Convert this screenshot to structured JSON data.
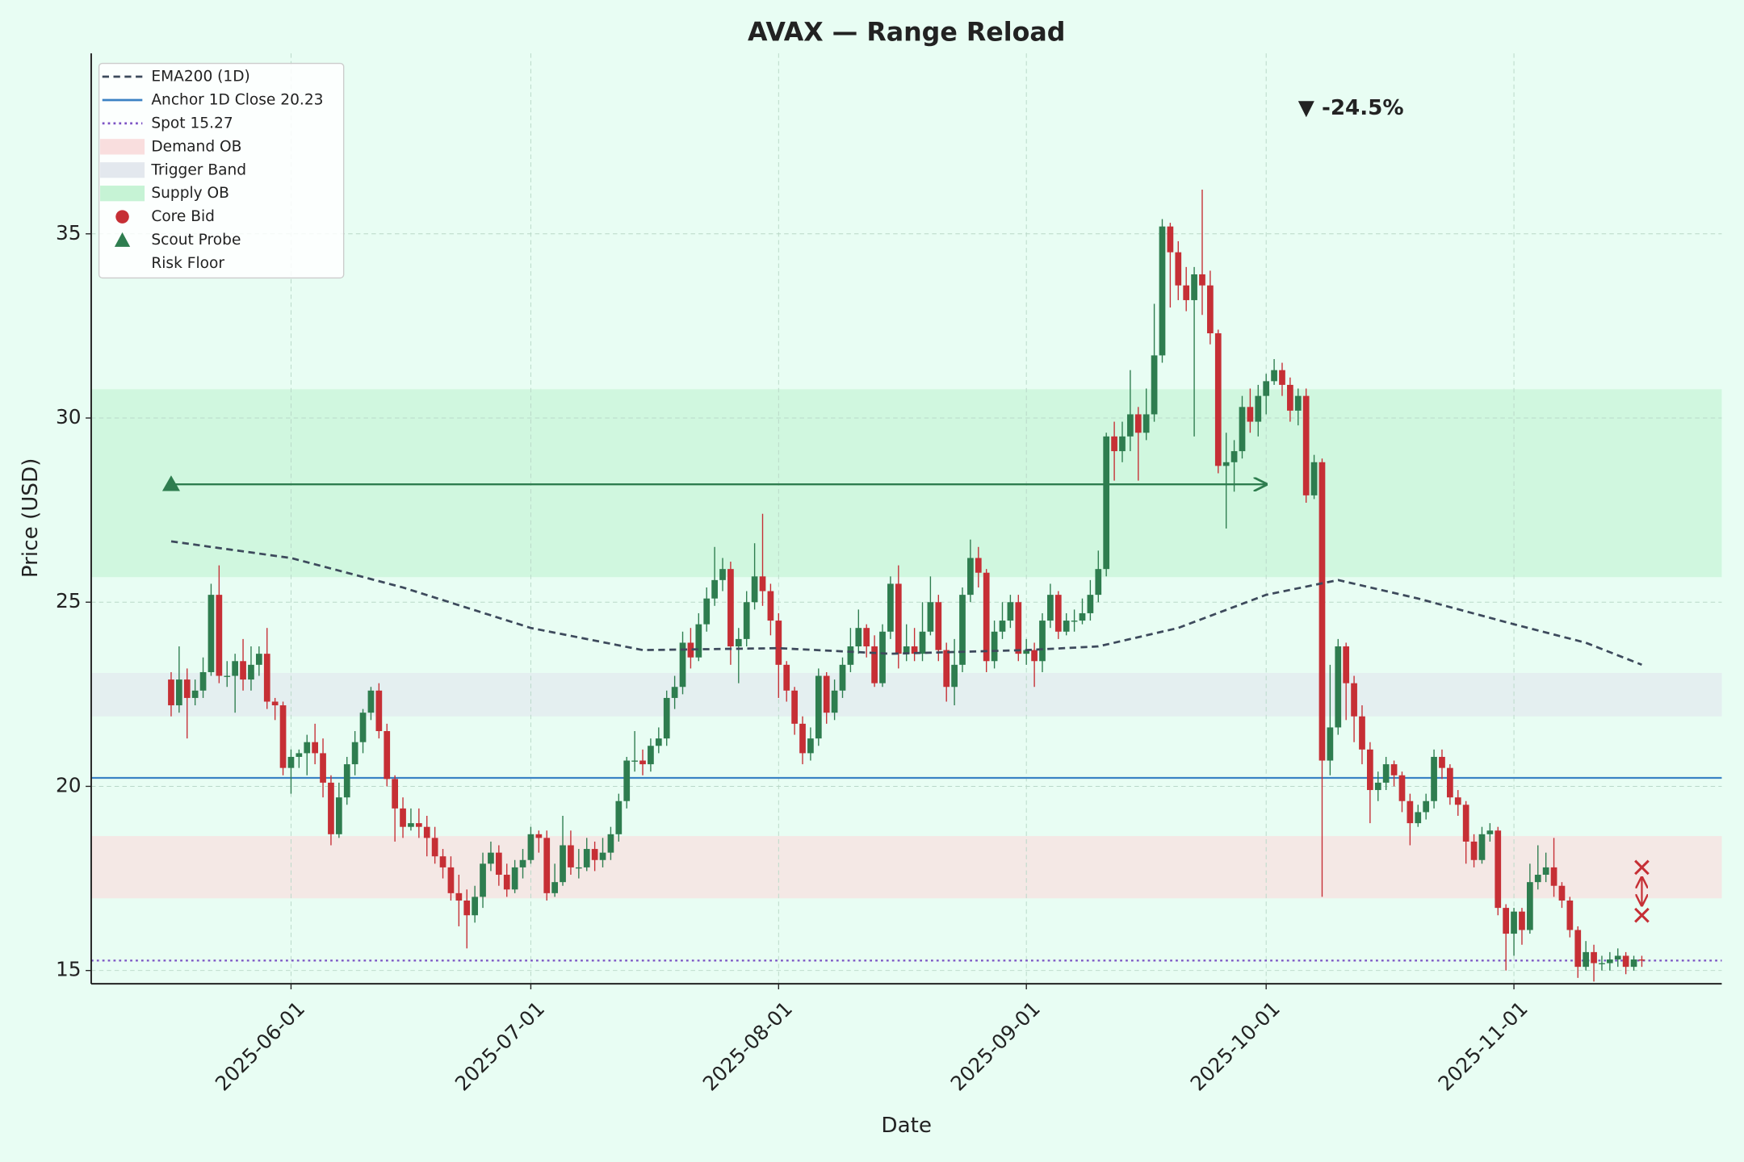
{
  "chart_data": {
    "type": "candlestick",
    "title": "AVAX — Range Reload",
    "x_label": "Date",
    "y_label": "Price (USD)",
    "xlim": [
      "2025-05-07",
      "2025-11-27"
    ],
    "ylim": [
      14.64,
      39.9
    ],
    "xticks": [
      "2025-06-01",
      "2025-07-01",
      "2025-08-01",
      "2025-09-01",
      "2025-10-01",
      "2025-11-01"
    ],
    "yticks": [
      15,
      20,
      25,
      30,
      35
    ],
    "grid": true,
    "legend_position": "upper left",
    "up_color": "#2e7d4f",
    "down_color": "#c62f35",
    "x": [
      "2025-05-17",
      "2025-05-18",
      "2025-05-19",
      "2025-05-20",
      "2025-05-21",
      "2025-05-22",
      "2025-05-23",
      "2025-05-24",
      "2025-05-25",
      "2025-05-26",
      "2025-05-27",
      "2025-05-28",
      "2025-05-29",
      "2025-05-30",
      "2025-05-31",
      "2025-06-01",
      "2025-06-02",
      "2025-06-03",
      "2025-06-04",
      "2025-06-05",
      "2025-06-06",
      "2025-06-07",
      "2025-06-08",
      "2025-06-09",
      "2025-06-10",
      "2025-06-11",
      "2025-06-12",
      "2025-06-13",
      "2025-06-14",
      "2025-06-15",
      "2025-06-16",
      "2025-06-17",
      "2025-06-18",
      "2025-06-19",
      "2025-06-20",
      "2025-06-21",
      "2025-06-22",
      "2025-06-23",
      "2025-06-24",
      "2025-06-25",
      "2025-06-26",
      "2025-06-27",
      "2025-06-28",
      "2025-06-29",
      "2025-06-30",
      "2025-07-01",
      "2025-07-02",
      "2025-07-03",
      "2025-07-04",
      "2025-07-05",
      "2025-07-06",
      "2025-07-07",
      "2025-07-08",
      "2025-07-09",
      "2025-07-10",
      "2025-07-11",
      "2025-07-12",
      "2025-07-13",
      "2025-07-14",
      "2025-07-15",
      "2025-07-16",
      "2025-07-17",
      "2025-07-18",
      "2025-07-19",
      "2025-07-20",
      "2025-07-21",
      "2025-07-22",
      "2025-07-23",
      "2025-07-24",
      "2025-07-25",
      "2025-07-26",
      "2025-07-27",
      "2025-07-28",
      "2025-07-29",
      "2025-07-30",
      "2025-07-31",
      "2025-08-01",
      "2025-08-02",
      "2025-08-03",
      "2025-08-04",
      "2025-08-05",
      "2025-08-06",
      "2025-08-07",
      "2025-08-08",
      "2025-08-09",
      "2025-08-10",
      "2025-08-11",
      "2025-08-12",
      "2025-08-13",
      "2025-08-14",
      "2025-08-15",
      "2025-08-16",
      "2025-08-17",
      "2025-08-18",
      "2025-08-19",
      "2025-08-20",
      "2025-08-21",
      "2025-08-22",
      "2025-08-23",
      "2025-08-24",
      "2025-08-25",
      "2025-08-26",
      "2025-08-27",
      "2025-08-28",
      "2025-08-29",
      "2025-08-30",
      "2025-08-31",
      "2025-09-01",
      "2025-09-02",
      "2025-09-03",
      "2025-09-04",
      "2025-09-05",
      "2025-09-06",
      "2025-09-07",
      "2025-09-08",
      "2025-09-09",
      "2025-09-10",
      "2025-09-11",
      "2025-09-12",
      "2025-09-13",
      "2025-09-14",
      "2025-09-15",
      "2025-09-16",
      "2025-09-17",
      "2025-09-18",
      "2025-09-19",
      "2025-09-20",
      "2025-09-21",
      "2025-09-22",
      "2025-09-23",
      "2025-09-24",
      "2025-09-25",
      "2025-09-26",
      "2025-09-27",
      "2025-09-28",
      "2025-09-29",
      "2025-09-30",
      "2025-10-01",
      "2025-10-02",
      "2025-10-03",
      "2025-10-04",
      "2025-10-05",
      "2025-10-06",
      "2025-10-07",
      "2025-10-08",
      "2025-10-09",
      "2025-10-10",
      "2025-10-11",
      "2025-10-12",
      "2025-10-13",
      "2025-10-14",
      "2025-10-15",
      "2025-10-16",
      "2025-10-17",
      "2025-10-18",
      "2025-10-19",
      "2025-10-20",
      "2025-10-21",
      "2025-10-22",
      "2025-10-23",
      "2025-10-24",
      "2025-10-25",
      "2025-10-26",
      "2025-10-27",
      "2025-10-28",
      "2025-10-29",
      "2025-10-30",
      "2025-10-31",
      "2025-11-01",
      "2025-11-02",
      "2025-11-03",
      "2025-11-04",
      "2025-11-05",
      "2025-11-06",
      "2025-11-07",
      "2025-11-08",
      "2025-11-09",
      "2025-11-10",
      "2025-11-11",
      "2025-11-12",
      "2025-11-13",
      "2025-11-14",
      "2025-11-15",
      "2025-11-16",
      "2025-11-17"
    ],
    "open": [
      22.9,
      22.2,
      22.9,
      22.4,
      22.6,
      23.1,
      25.2,
      23.0,
      23.0,
      23.4,
      22.9,
      23.3,
      23.6,
      22.3,
      22.2,
      20.5,
      20.8,
      20.9,
      21.2,
      20.9,
      20.1,
      18.7,
      19.7,
      20.6,
      21.2,
      22.0,
      22.6,
      21.5,
      20.2,
      19.4,
      18.9,
      19.0,
      18.9,
      18.6,
      18.1,
      17.8,
      17.1,
      16.9,
      16.5,
      17.0,
      17.9,
      18.2,
      17.6,
      17.2,
      17.8,
      18.0,
      18.7,
      18.6,
      17.1,
      17.4,
      18.4,
      17.8,
      17.8,
      18.3,
      18.0,
      18.2,
      18.7,
      19.6,
      20.7,
      20.7,
      20.6,
      21.1,
      21.3,
      22.4,
      22.7,
      23.9,
      23.5,
      24.4,
      25.1,
      25.6,
      25.9,
      23.8,
      24.0,
      25.0,
      25.7,
      25.3,
      24.5,
      23.3,
      22.6,
      21.7,
      20.9,
      21.3,
      23.0,
      22.0,
      22.6,
      23.3,
      23.8,
      24.3,
      23.8,
      22.8,
      24.2,
      25.5,
      23.6,
      23.8,
      23.6,
      24.2,
      25.0,
      23.7,
      22.7,
      23.3,
      25.2,
      26.2,
      25.8,
      23.4,
      24.2,
      24.5,
      25.0,
      23.6,
      23.7,
      23.4,
      24.5,
      25.2,
      24.2,
      24.5,
      24.5,
      24.7,
      25.2,
      25.9,
      29.5,
      29.1,
      29.5,
      30.1,
      29.6,
      30.1,
      31.7,
      35.2,
      34.5,
      33.6,
      33.2,
      33.9,
      33.6,
      32.3,
      28.7,
      28.8,
      29.1,
      30.3,
      29.9,
      30.6,
      31.0,
      31.3,
      30.9,
      30.2,
      30.6,
      27.9,
      28.8,
      20.7,
      21.6,
      23.8,
      22.8,
      21.9,
      21.0,
      19.9,
      20.1,
      20.6,
      20.3,
      19.6,
      19.0,
      19.3,
      19.6,
      20.8,
      20.5,
      19.7,
      19.5,
      18.5,
      18.0,
      18.7,
      18.8,
      16.7,
      16.0,
      16.6,
      16.1,
      17.4,
      17.6,
      17.8,
      17.3,
      16.9,
      16.1,
      15.1,
      15.5,
      15.2,
      15.2,
      15.3,
      15.4,
      15.1,
      15.3
    ],
    "high": [
      23.1,
      23.8,
      23.2,
      22.9,
      23.5,
      25.5,
      26.0,
      23.4,
      23.6,
      24.0,
      23.8,
      23.8,
      24.3,
      22.4,
      22.3,
      21.0,
      21.0,
      21.4,
      21.7,
      21.3,
      20.3,
      20.1,
      20.8,
      21.5,
      22.1,
      22.7,
      22.8,
      21.7,
      20.3,
      19.7,
      19.4,
      19.4,
      19.2,
      18.9,
      18.3,
      18.1,
      17.6,
      17.2,
      17.3,
      18.2,
      18.5,
      18.4,
      17.9,
      18.0,
      18.3,
      18.9,
      18.8,
      18.8,
      17.9,
      19.2,
      18.8,
      18.3,
      18.6,
      18.5,
      18.6,
      18.9,
      19.8,
      20.8,
      21.5,
      21.0,
      21.3,
      21.6,
      22.6,
      23.0,
      24.2,
      24.3,
      24.7,
      25.4,
      26.5,
      26.2,
      26.1,
      24.3,
      25.3,
      26.6,
      27.4,
      25.5,
      24.7,
      23.4,
      22.7,
      21.9,
      21.6,
      23.2,
      23.1,
      22.9,
      23.5,
      24.3,
      24.8,
      24.4,
      24.1,
      24.4,
      25.7,
      26.0,
      24.4,
      24.3,
      25.0,
      25.7,
      25.2,
      23.9,
      24.0,
      25.4,
      26.7,
      26.5,
      25.9,
      24.5,
      25.0,
      25.2,
      25.2,
      24.0,
      23.9,
      24.7,
      25.5,
      25.3,
      24.7,
      24.8,
      25.1,
      25.6,
      26.4,
      29.6,
      29.9,
      29.9,
      31.3,
      30.3,
      30.8,
      33.1,
      35.4,
      35.3,
      34.8,
      34.1,
      34.1,
      36.2,
      34.0,
      32.4,
      29.6,
      29.4,
      30.6,
      30.8,
      30.9,
      31.2,
      31.6,
      31.5,
      31.1,
      30.8,
      30.8,
      29.0,
      28.9,
      23.3,
      24.0,
      23.9,
      23.0,
      22.2,
      21.2,
      20.4,
      20.8,
      20.7,
      20.4,
      19.8,
      19.5,
      19.8,
      21.0,
      21.0,
      20.6,
      19.9,
      19.6,
      18.7,
      18.9,
      19.0,
      18.9,
      16.8,
      16.7,
      16.7,
      17.9,
      18.4,
      18.2,
      18.6,
      17.4,
      17.0,
      16.2,
      15.8,
      15.7,
      15.4,
      15.5,
      15.6,
      15.5,
      15.4,
      15.4
    ],
    "low": [
      21.9,
      22.0,
      21.3,
      22.2,
      22.4,
      23.0,
      22.8,
      22.7,
      22.0,
      22.6,
      22.6,
      23.0,
      22.1,
      21.8,
      20.3,
      19.8,
      20.5,
      20.3,
      20.6,
      19.7,
      18.4,
      18.6,
      19.5,
      20.3,
      20.9,
      21.8,
      21.3,
      20.0,
      18.5,
      18.6,
      18.8,
      18.6,
      18.1,
      17.9,
      17.5,
      16.9,
      16.2,
      15.6,
      16.3,
      16.7,
      17.7,
      17.3,
      17.0,
      17.1,
      17.5,
      17.9,
      18.2,
      16.9,
      17.0,
      17.3,
      17.6,
      17.5,
      17.7,
      17.7,
      17.8,
      18.0,
      18.5,
      19.4,
      20.4,
      20.3,
      20.4,
      20.9,
      21.1,
      22.1,
      22.5,
      23.2,
      23.4,
      24.2,
      24.9,
      25.3,
      23.3,
      22.8,
      23.8,
      24.8,
      24.9,
      24.1,
      22.4,
      22.3,
      21.4,
      20.6,
      20.7,
      21.1,
      21.7,
      21.8,
      22.4,
      23.1,
      23.6,
      23.5,
      22.7,
      22.7,
      24.0,
      23.2,
      23.4,
      23.4,
      23.4,
      24.1,
      23.4,
      22.3,
      22.2,
      23.1,
      25.0,
      25.4,
      23.1,
      23.2,
      24.0,
      24.3,
      23.4,
      23.3,
      22.7,
      23.1,
      24.3,
      24.0,
      24.1,
      24.2,
      24.4,
      24.5,
      25.0,
      25.7,
      28.3,
      28.8,
      29.1,
      28.3,
      29.4,
      29.9,
      31.5,
      33.0,
      33.2,
      32.9,
      29.5,
      32.8,
      32.0,
      28.5,
      27.0,
      28.0,
      28.9,
      29.6,
      29.5,
      30.1,
      30.9,
      30.6,
      29.9,
      29.8,
      27.7,
      27.8,
      17.0,
      20.3,
      21.4,
      21.8,
      21.2,
      20.6,
      19.0,
      19.6,
      19.9,
      20.0,
      19.3,
      18.4,
      18.9,
      19.1,
      19.4,
      20.2,
      19.5,
      19.2,
      17.9,
      17.8,
      17.9,
      18.5,
      16.5,
      15.0,
      15.4,
      15.7,
      16.0,
      17.2,
      17.4,
      17.0,
      16.7,
      15.9,
      14.8,
      15.0,
      14.7,
      15.0,
      15.0,
      15.1,
      14.9,
      15.0,
      15.1
    ],
    "close": [
      22.2,
      22.9,
      22.4,
      22.6,
      23.1,
      25.2,
      23.0,
      23.0,
      23.4,
      22.9,
      23.3,
      23.6,
      22.3,
      22.2,
      20.5,
      20.8,
      20.9,
      21.2,
      20.9,
      20.1,
      18.7,
      19.7,
      20.6,
      21.2,
      22.0,
      22.6,
      21.5,
      20.2,
      19.4,
      18.9,
      19.0,
      18.9,
      18.6,
      18.1,
      17.8,
      17.1,
      16.9,
      16.5,
      17.0,
      17.9,
      18.2,
      17.6,
      17.2,
      17.8,
      18.0,
      18.7,
      18.6,
      17.1,
      17.4,
      18.4,
      17.8,
      17.8,
      18.3,
      18.0,
      18.2,
      18.7,
      19.6,
      20.7,
      20.7,
      20.6,
      21.1,
      21.3,
      22.4,
      22.7,
      23.9,
      23.5,
      24.4,
      25.1,
      25.6,
      25.9,
      23.8,
      24.0,
      25.0,
      25.7,
      25.3,
      24.5,
      23.3,
      22.6,
      21.7,
      20.9,
      21.3,
      23.0,
      22.0,
      22.6,
      23.3,
      23.8,
      24.3,
      23.8,
      22.8,
      24.2,
      25.5,
      23.6,
      23.8,
      23.6,
      24.2,
      25.0,
      23.7,
      22.7,
      23.3,
      25.2,
      26.2,
      25.8,
      23.4,
      24.2,
      24.5,
      25.0,
      23.6,
      23.7,
      23.4,
      24.5,
      25.2,
      24.2,
      24.5,
      24.5,
      24.7,
      25.2,
      25.9,
      29.5,
      29.1,
      29.5,
      30.1,
      29.6,
      30.1,
      31.7,
      35.2,
      34.5,
      33.6,
      33.2,
      33.9,
      33.6,
      32.3,
      28.7,
      28.8,
      29.1,
      30.3,
      29.9,
      30.6,
      31.0,
      31.3,
      30.9,
      30.2,
      30.6,
      27.9,
      28.8,
      20.7,
      21.6,
      23.8,
      22.8,
      21.9,
      21.0,
      19.9,
      20.1,
      20.6,
      20.3,
      19.6,
      19.0,
      19.3,
      19.6,
      20.8,
      20.5,
      19.7,
      19.5,
      18.5,
      18.0,
      18.7,
      18.8,
      16.7,
      16.0,
      16.6,
      16.1,
      17.4,
      17.6,
      17.8,
      17.3,
      16.9,
      16.1,
      15.1,
      15.5,
      15.2,
      15.2,
      15.3,
      15.4,
      15.1,
      15.3,
      15.27
    ],
    "ema": {
      "name": "EMA200 (1D)",
      "color": "#3d4a5c",
      "x": [
        "2025-05-17",
        "2025-06-01",
        "2025-06-15",
        "2025-07-01",
        "2025-07-15",
        "2025-08-01",
        "2025-08-15",
        "2025-09-01",
        "2025-09-10",
        "2025-09-20",
        "2025-10-01",
        "2025-10-10",
        "2025-10-20",
        "2025-11-01",
        "2025-11-10",
        "2025-11-17"
      ],
      "values": [
        26.65,
        26.2,
        25.4,
        24.3,
        23.7,
        23.75,
        23.6,
        23.7,
        23.8,
        24.3,
        25.2,
        25.6,
        25.1,
        24.4,
        23.9,
        23.3
      ]
    },
    "levels": [
      {
        "name": "Anchor 1D Close 20.23",
        "value": 20.23,
        "color": "#3b82c4",
        "style": "solid"
      },
      {
        "name": "Spot 15.27",
        "value": 15.27,
        "color": "#7b52c4",
        "style": "dotted"
      }
    ],
    "bands": [
      {
        "name": "Demand OB",
        "range": [
          16.96,
          18.65
        ],
        "color": "#f9dede"
      },
      {
        "name": "Trigger Band",
        "range": [
          21.9,
          23.08
        ],
        "color": "#e3e8ee"
      },
      {
        "name": "Supply OB",
        "range": [
          25.68,
          30.78
        ],
        "color": "#c6f3d5"
      }
    ],
    "markers": [
      {
        "name": "Core Bid",
        "shape": "circle",
        "color": "#c62f35",
        "points": []
      },
      {
        "name": "Scout Probe",
        "shape": "triangle",
        "color": "#2e7d4f",
        "points": [
          {
            "x": "2025-05-17",
            "y": 28.2
          }
        ]
      },
      {
        "name": "Risk Floor",
        "shape": "none",
        "color": "#c62f35",
        "points": []
      }
    ],
    "arrow": {
      "x0": "2025-05-17",
      "x1": "2025-10-01",
      "y": 28.2,
      "color": "#2e7d4f"
    },
    "exit_marks": {
      "color": "#c62f35",
      "points": [
        {
          "x": "2025-11-17",
          "y": 17.8
        },
        {
          "x": "2025-11-17",
          "y": 16.5
        }
      ]
    },
    "annotation": {
      "text": "▼ -24.5%",
      "x": "2025-10-05",
      "y": 38.4,
      "color": "#c62f35"
    }
  }
}
